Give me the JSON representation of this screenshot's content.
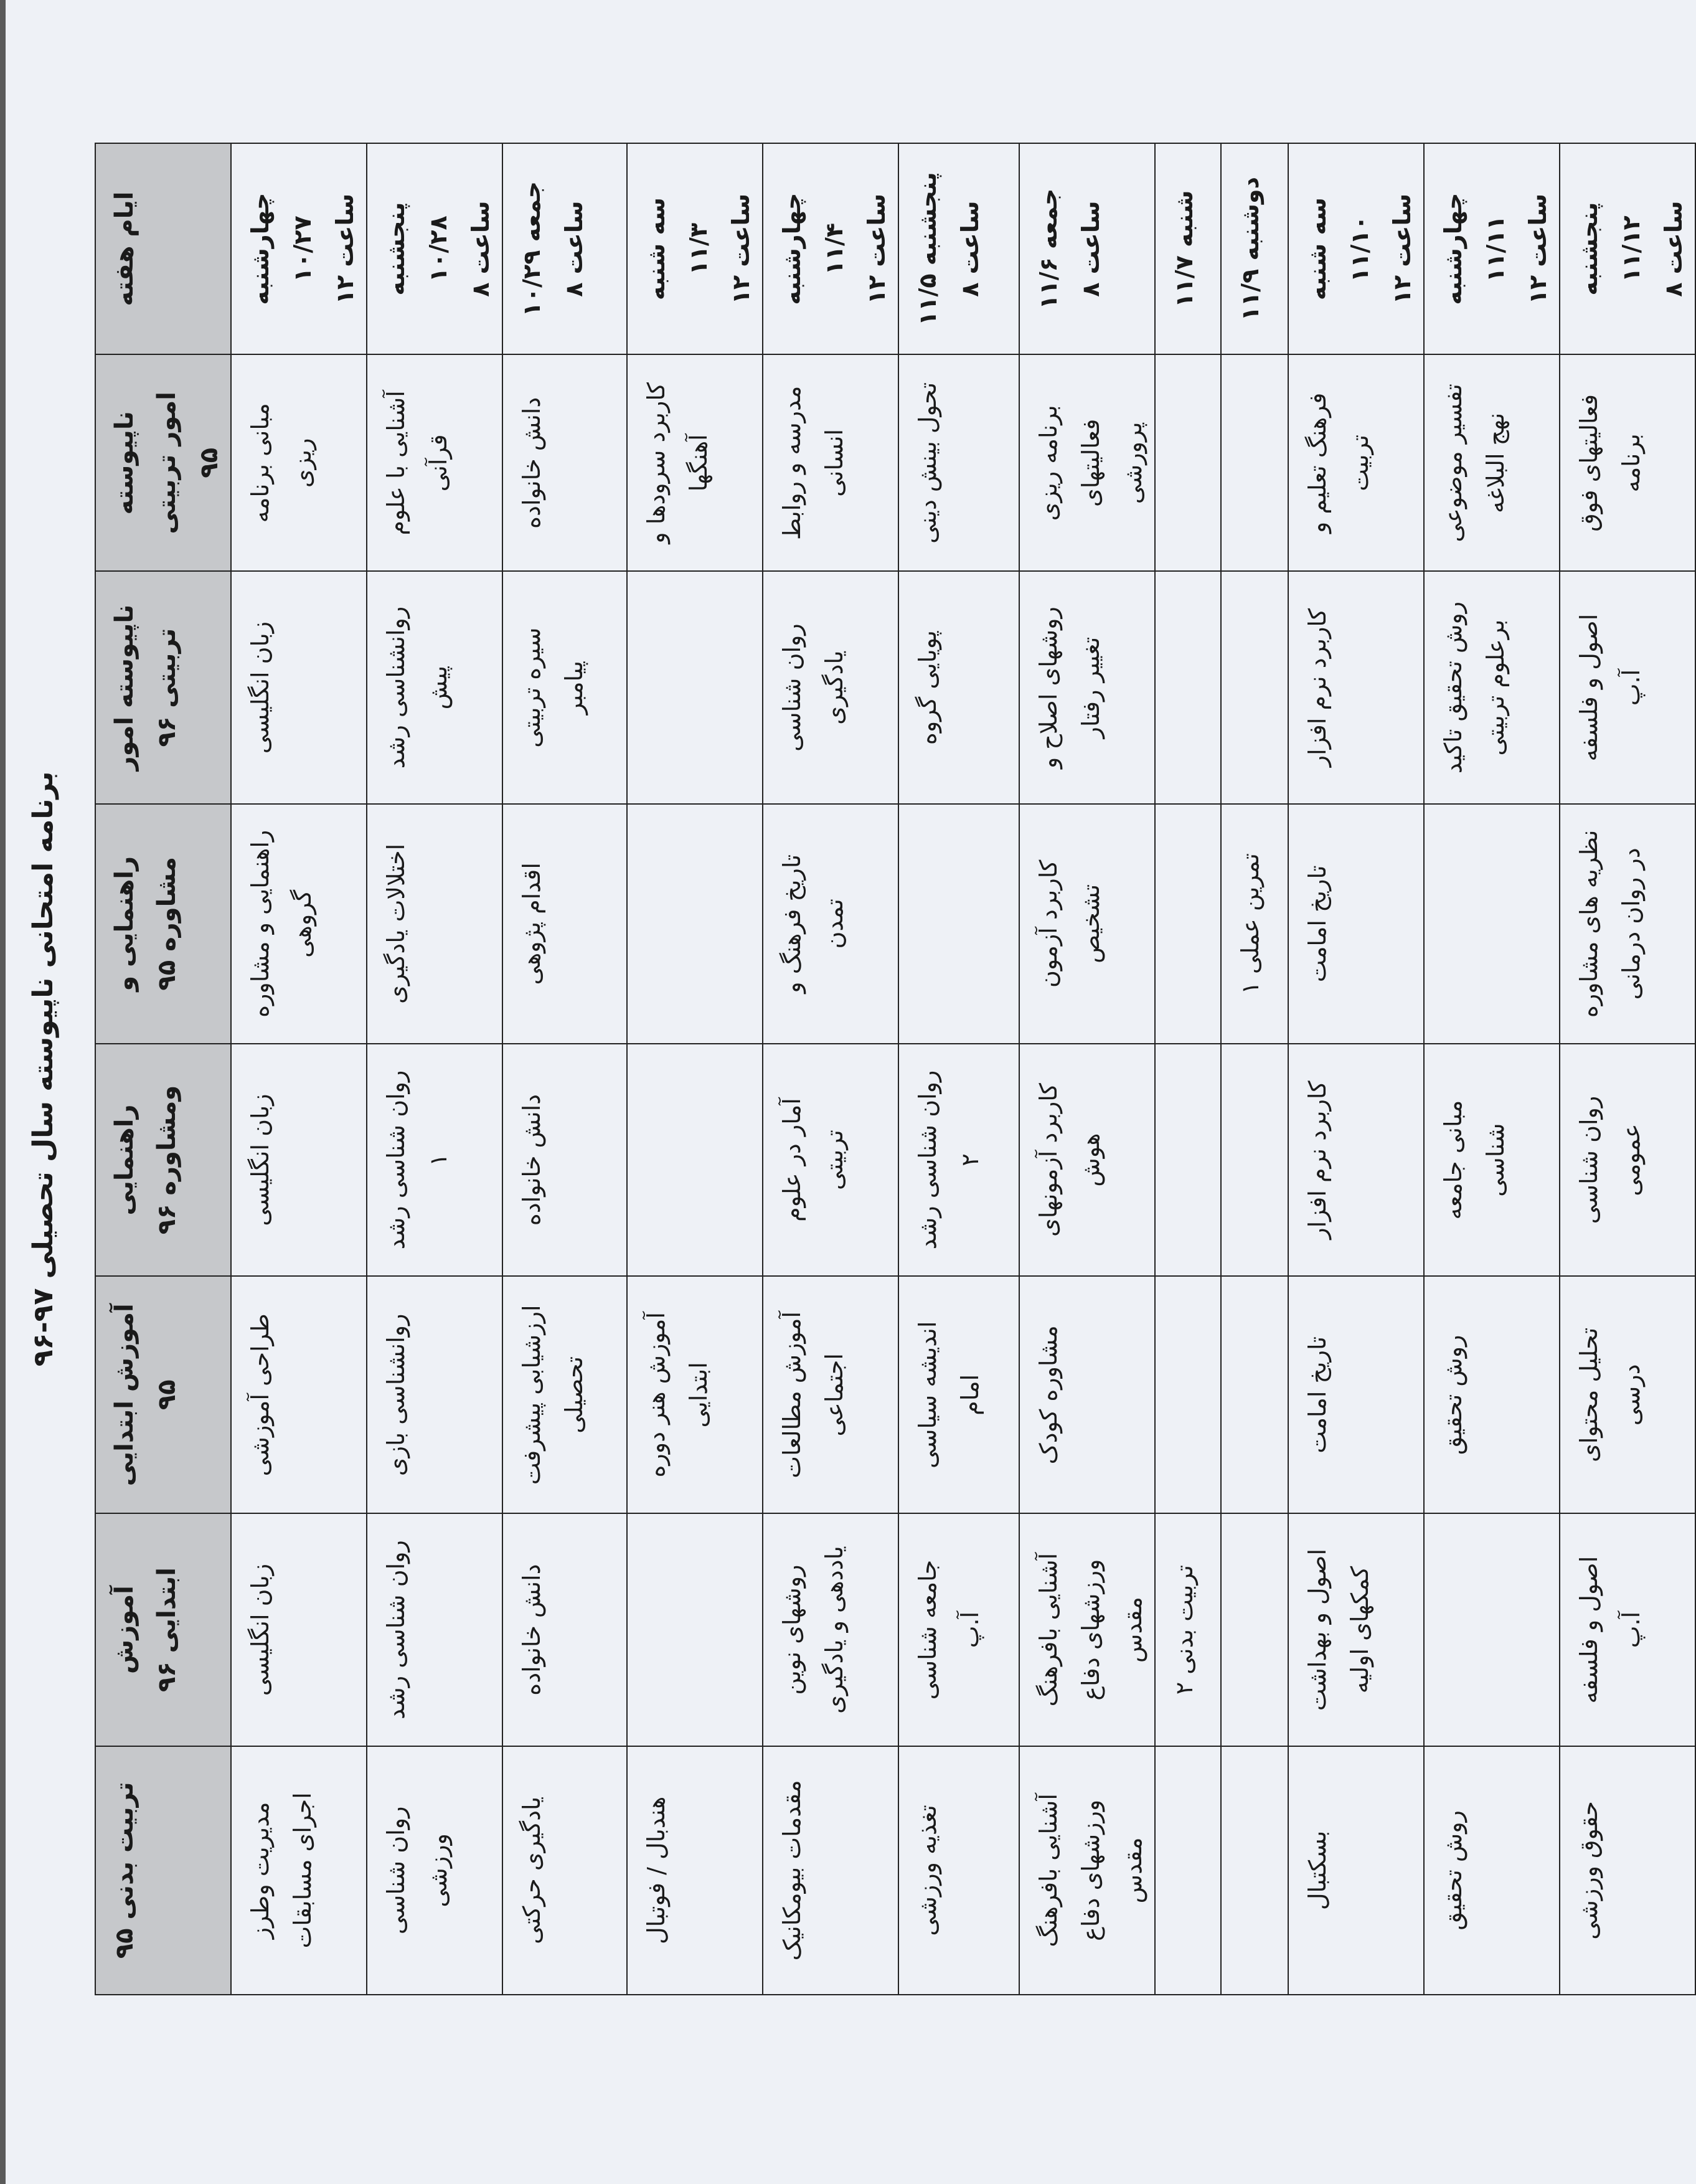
{
  "title": "برنامه امتحانی ناپیوسته سال تحصیلی ۹۷-۹۶",
  "headers": [
    "ایام هفته",
    "ناپیوسته امور تربیتی ۹۵",
    "ناپیوسته امور تربیتی ۹۶",
    "راهنمایی و مشاوره ۹۵",
    "راهنمایی ومشاوره ۹۶",
    "آموزش ابتدایی ۹۵",
    "آموزش ابتدایی ۹۶",
    "تربیت بدنی ۹۵"
  ],
  "rows": [
    {
      "day": "چهارشنبه ۱۰/۲۷",
      "time": "ساعت ۱۲",
      "cells": [
        "مبانی برنامه ریزی",
        "زبان انگلیسی",
        "راهنمایی و مشاوره گروهی",
        "زبان انگلیسی",
        "طراحی آموزشی",
        "زبان انگلیسی",
        "مدیریت وطرز اجرای مسابقات"
      ]
    },
    {
      "day": "پنجشنبه ۱۰/۲۸",
      "time": "ساعت ۸",
      "cells": [
        "آشنایی با علوم قرآنی",
        "روانشناسی رشد پیش",
        "اختلالات یادگیری",
        "روان شناسی رشد ۱",
        "روانشناسی بازی",
        "روان شناسی رشد",
        "روان شناسی ورزشی"
      ]
    },
    {
      "day": "جمعه ۱۰/۲۹",
      "time": "ساعت ۸",
      "cells": [
        "دانش خانواده",
        "سیره تربیتی پیامبر",
        "اقدام پژوهی",
        "دانش خانواده",
        "ارزشیابی پیشرفت تحصیلی",
        "دانش خانواده",
        "یادگیری حرکتی"
      ]
    },
    {
      "day": "سه شنبه ۱۱/۳",
      "time": "ساعت ۱۲",
      "cells": [
        "کاربرد سرودها و آهنگها",
        "",
        "",
        "",
        "آموزش هنر دوره ابتدایی",
        "",
        "هندبال / فوتبال"
      ]
    },
    {
      "day": "چهارشنبه ۱۱/۴",
      "time": "ساعت ۱۲",
      "cells": [
        "مدرسه و روابط انسانی",
        "روان شناسی یادگیری",
        "تاریخ فرهنگ و تمدن",
        "آمار در علوم تربیتی",
        "آموزش مطالعات اجتماعی",
        "روشهای نوین یاددهی و یادگیری",
        "مقدمات بیومکانیک"
      ]
    },
    {
      "day": "پنجشنبه ۱۱/۵",
      "time": "ساعت ۸",
      "cells": [
        "تحول بینش دینی",
        "پویایی گروه",
        "",
        "روان شناسی رشد ۲",
        "اندیشه سیاسی امام",
        "جامعه شناسی آ.پ",
        "تغذیه ورزشی"
      ]
    },
    {
      "day": "جمعه ۱۱/۶",
      "time": "ساعت ۸",
      "cells": [
        "برنامه ریزی فعالیتهای پرورشی",
        "روشهای اصلاح و تغییر رفتار",
        "کاربرد آزمون تشخیص",
        "کاربرد آزمونهای هوش",
        "مشاوره کودک",
        "آشنایی بافرهنگ ورزشهای دفاع مقدس",
        "آشنایی بافرهنگ ورزشهای دفاع مقدس"
      ]
    },
    {
      "day": "شنبه ۱۱/۷",
      "time": "",
      "cells": [
        "",
        "",
        "",
        "",
        "",
        "تربیت بدنی ۲",
        ""
      ]
    },
    {
      "day": "دوشنبه ۱۱/۹",
      "time": "",
      "cells": [
        "",
        "",
        "تمرین عملی ۱",
        "",
        "",
        "",
        ""
      ]
    },
    {
      "day": "سه شنبه ۱۱/۱۰",
      "time": "ساعت ۱۲",
      "cells": [
        "فرهنگ تعلیم و تربیت",
        "کاربرد نرم افزار",
        "تاریخ امامت",
        "کاربرد نرم افزار",
        "تاریخ امامت",
        "اصول و بهداشت کمکهای اولیه",
        "بسکتبال"
      ]
    },
    {
      "day": "چهارشنبه ۱۱/۱۱",
      "time": "ساعت ۱۲",
      "cells": [
        "تفسیر موضوعی نهج البلاغه",
        "روش تحقیق تاکید برعلوم تربیتی",
        "",
        "مبانی جامعه شناسی",
        "روش تحقیق",
        "",
        "روش تحقیق"
      ]
    },
    {
      "day": "پنجشنبه ۱۱/۱۲",
      "time": "ساعت ۸",
      "cells": [
        "فعالیتهای فوق برنامه",
        "اصول و فلسفه آ.پ",
        "نظریه های مشاوره در روان درمانی",
        "روان شناسی عمومی",
        "تحلیل محتوای درسی",
        "اصول و فلسفه آ.پ",
        "حقوق ورزشی"
      ]
    }
  ]
}
